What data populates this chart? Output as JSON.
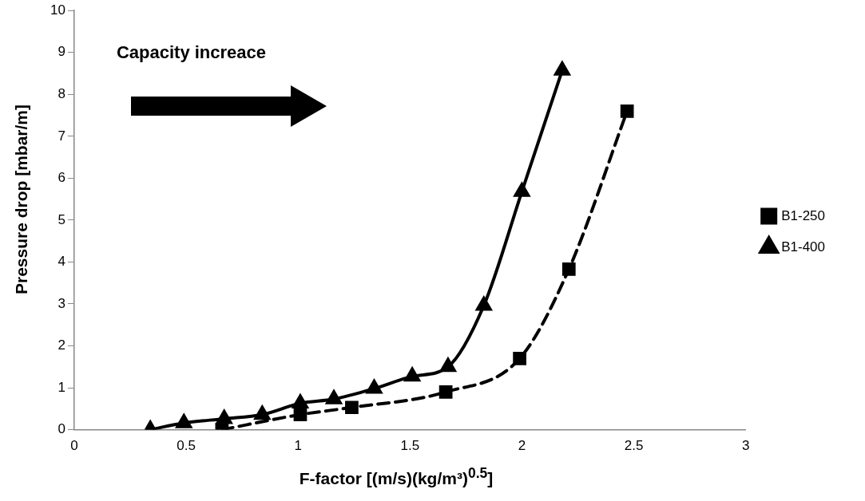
{
  "chart_data": {
    "type": "line",
    "xlabel": "F-factor [(m/s)(kg/m³)$^{0.5}$]",
    "ylabel": "Pressure drop [mbar/m]",
    "annotations": [
      "Capacity increace"
    ],
    "xlim": [
      0,
      3
    ],
    "xticks": [
      0,
      0.5,
      1,
      1.5,
      2,
      2.5,
      3
    ],
    "ylim": [
      0,
      10
    ],
    "yticks": [
      0,
      1,
      2,
      3,
      4,
      5,
      6,
      7,
      8,
      9,
      10
    ],
    "grid": false,
    "legend": "right",
    "series": [
      {
        "name": "B1-250",
        "color": "#000000",
        "marker": "square",
        "line_style": "dashed",
        "x": [
          0.66,
          1.01,
          1.24,
          1.66,
          1.99,
          2.21,
          2.47
        ],
        "values": [
          0,
          0.36,
          0.53,
          0.9,
          1.7,
          3.83,
          7.6
        ]
      },
      {
        "name": "B1-400",
        "color": "#000000",
        "marker": "triangle",
        "line_style": "solid",
        "x": [
          0.34,
          0.49,
          0.67,
          0.84,
          1.01,
          1.16,
          1.34,
          1.51,
          1.67,
          1.83,
          2.0,
          2.18
        ],
        "values": [
          0,
          0.16,
          0.26,
          0.36,
          0.63,
          0.73,
          0.98,
          1.27,
          1.5,
          2.96,
          5.68,
          8.57
        ]
      }
    ]
  }
}
